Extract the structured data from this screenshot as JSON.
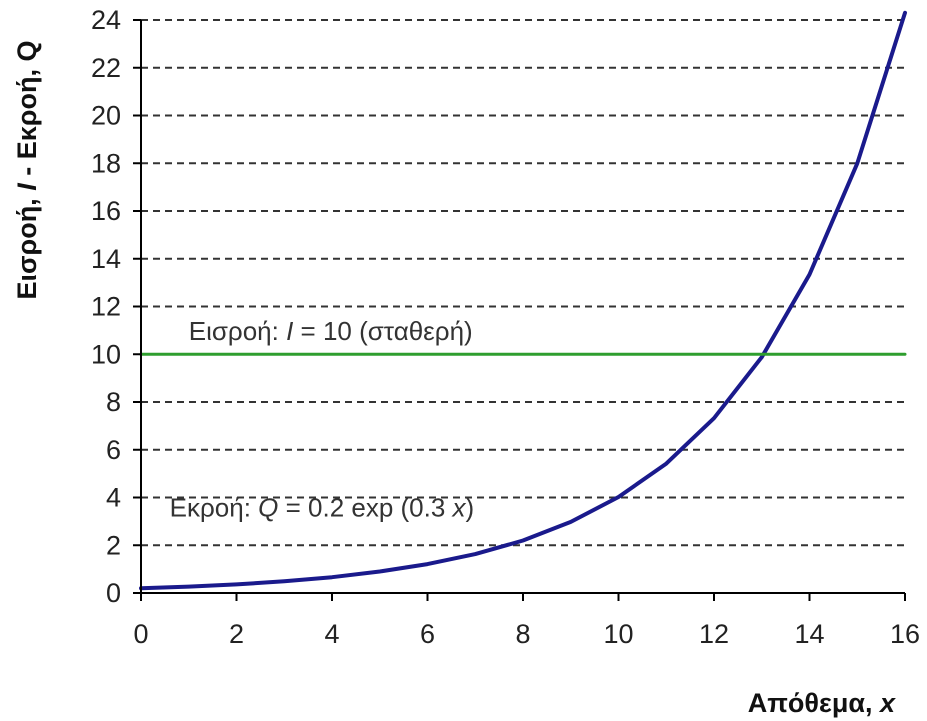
{
  "chart_data": {
    "type": "line",
    "title": "",
    "xlabel": {
      "text": "Απόθεμα, ",
      "var": "x"
    },
    "ylabel": {
      "p1": "Εισροή, ",
      "v1": "I",
      "p2": " - Εκροή, ",
      "v2": "Q"
    },
    "xlim": [
      0,
      16
    ],
    "ylim": [
      0,
      24
    ],
    "x_ticks": [
      "0",
      "2",
      "4",
      "6",
      "8",
      "10",
      "12",
      "14",
      "16"
    ],
    "y_ticks": [
      "0",
      "2",
      "4",
      "6",
      "8",
      "10",
      "12",
      "14",
      "16",
      "18",
      "20",
      "22",
      "24"
    ],
    "grid": {
      "horizontal": true,
      "style": "dashed",
      "vertical": false
    },
    "series": [
      {
        "id": "outflow",
        "color": "#1a1a8c",
        "x": [
          0,
          1,
          2,
          3,
          4,
          5,
          6,
          7,
          8,
          9,
          10,
          11,
          12,
          13,
          14,
          15,
          16
        ],
        "y": [
          0.2,
          0.27,
          0.36,
          0.49,
          0.66,
          0.9,
          1.21,
          1.63,
          2.2,
          2.98,
          4.02,
          5.42,
          7.32,
          9.88,
          13.34,
          18.0,
          24.3
        ]
      },
      {
        "id": "inflow",
        "color": "#2e9e2e",
        "x": [
          0,
          16
        ],
        "y": [
          10,
          10
        ]
      }
    ],
    "annotations": {
      "inflow_label": {
        "p1": "Εισροή: ",
        "v": "I",
        "p2": " = 10 (σταθερή)",
        "x": 1.0,
        "y": 10.6
      },
      "outflow_label": {
        "p1": "Εκροή: ",
        "v": "Q",
        "p2": " = 0.2 exp (0.3 ",
        "v2": "x",
        "p3": ")",
        "x": 0.6,
        "y": 3.2
      }
    }
  }
}
